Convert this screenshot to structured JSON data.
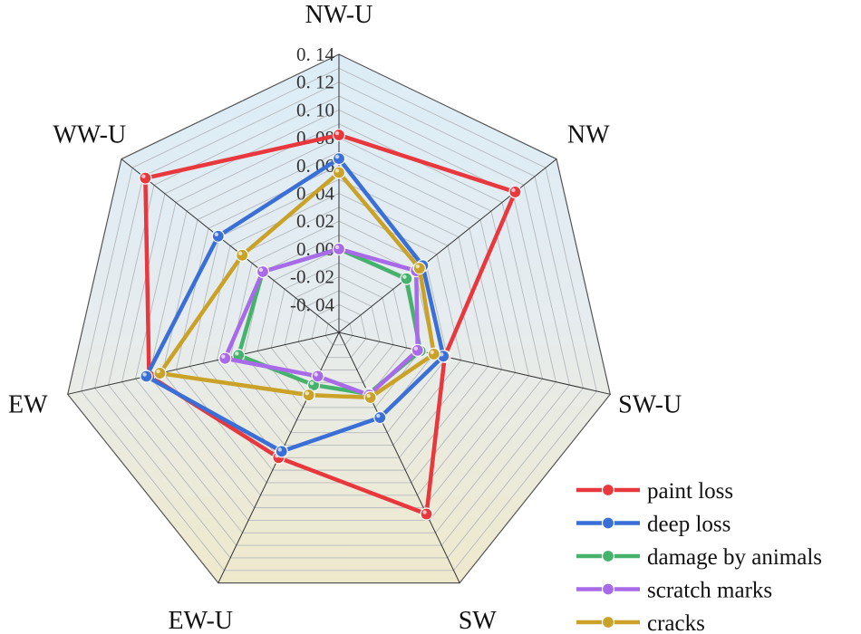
{
  "chart_data": {
    "type": "radar",
    "axes": [
      "NW-U",
      "NW",
      "SW-U",
      "SW",
      "EW-U",
      "EW",
      "WW-U"
    ],
    "rlim": [
      -0.06,
      0.14
    ],
    "ticks": [
      0.14,
      0.12,
      0.1,
      0.08,
      0.06,
      0.04,
      0.02,
      0.0,
      -0.02,
      -0.04
    ],
    "tick_labels": [
      "0. 14",
      "0. 12",
      "0. 10",
      "0. 08",
      "0. 06",
      "0. 04",
      "0. 02",
      "0. 00",
      "-0. 02",
      "-0. 04"
    ],
    "grid": true,
    "legend_position": "bottom-right",
    "series": [
      {
        "name": "paint loss",
        "color": "#e8373d",
        "values": [
          0.082,
          0.102,
          0.018,
          0.085,
          0.04,
          0.08,
          0.118
        ]
      },
      {
        "name": "deep loss",
        "color": "#3a6fd8",
        "values": [
          0.065,
          0.017,
          0.017,
          0.008,
          0.035,
          0.082,
          0.051
        ]
      },
      {
        "name": "damage by animals",
        "color": "#45b36b",
        "values": [
          0.0,
          0.002,
          0.0,
          -0.011,
          -0.018,
          0.014,
          0.01
        ]
      },
      {
        "name": "scratch marks",
        "color": "#a86ae8",
        "values": [
          0.0,
          0.011,
          -0.002,
          -0.01,
          -0.025,
          0.024,
          0.01
        ]
      },
      {
        "name": "cracks",
        "color": "#c9a227",
        "values": [
          0.055,
          0.014,
          0.01,
          -0.008,
          -0.01,
          0.072,
          0.029
        ]
      }
    ]
  }
}
